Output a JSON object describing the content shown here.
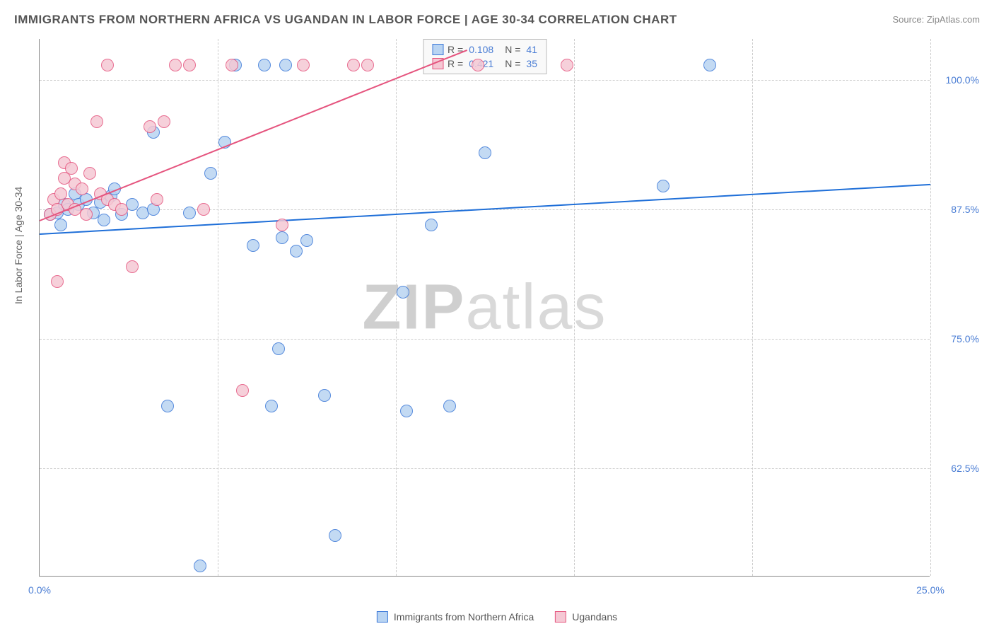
{
  "title": "IMMIGRANTS FROM NORTHERN AFRICA VS UGANDAN IN LABOR FORCE | AGE 30-34 CORRELATION CHART",
  "source": "Source: ZipAtlas.com",
  "y_axis_label": "In Labor Force | Age 30-34",
  "watermark_a": "ZIP",
  "watermark_b": "atlas",
  "chart": {
    "type": "scatter",
    "xlim": [
      0,
      25
    ],
    "ylim": [
      52,
      104
    ],
    "y_ticks": [
      62.5,
      75.0,
      87.5,
      100.0
    ],
    "y_tick_labels": [
      "62.5%",
      "75.0%",
      "87.5%",
      "100.0%"
    ],
    "x_ticks": [
      0,
      5,
      10,
      15,
      20,
      25
    ],
    "x_tick_labels": [
      "0.0%",
      "",
      "",
      "",
      "",
      "25.0%"
    ],
    "background_color": "#ffffff",
    "grid_color": "#cccccc",
    "series": [
      {
        "name": "Immigrants from Northern Africa",
        "color_fill": "#b9d4f2",
        "color_stroke": "#3b78d8",
        "line_color": "#1f6fd8",
        "R": "0.108",
        "N": "41",
        "trend": {
          "x1": 0,
          "y1": 85.2,
          "x2": 25,
          "y2": 90.0
        },
        "points": [
          {
            "x": 0.3,
            "y": 87.0
          },
          {
            "x": 0.5,
            "y": 87.2
          },
          {
            "x": 0.6,
            "y": 86.0
          },
          {
            "x": 0.7,
            "y": 88.0
          },
          {
            "x": 0.8,
            "y": 87.5
          },
          {
            "x": 1.0,
            "y": 89.0
          },
          {
            "x": 1.1,
            "y": 88.0
          },
          {
            "x": 1.3,
            "y": 88.5
          },
          {
            "x": 1.5,
            "y": 87.2
          },
          {
            "x": 1.7,
            "y": 88.2
          },
          {
            "x": 1.8,
            "y": 86.5
          },
          {
            "x": 2.0,
            "y": 88.8
          },
          {
            "x": 2.1,
            "y": 89.5
          },
          {
            "x": 2.3,
            "y": 87.0
          },
          {
            "x": 2.6,
            "y": 88.0
          },
          {
            "x": 2.9,
            "y": 87.2
          },
          {
            "x": 3.2,
            "y": 87.5
          },
          {
            "x": 3.2,
            "y": 95.0
          },
          {
            "x": 3.6,
            "y": 68.5
          },
          {
            "x": 4.2,
            "y": 87.2
          },
          {
            "x": 4.5,
            "y": 53.0
          },
          {
            "x": 4.8,
            "y": 91.0
          },
          {
            "x": 5.2,
            "y": 94.0
          },
          {
            "x": 5.5,
            "y": 101.5
          },
          {
            "x": 6.0,
            "y": 84.0
          },
          {
            "x": 6.3,
            "y": 101.5
          },
          {
            "x": 6.5,
            "y": 68.5
          },
          {
            "x": 6.7,
            "y": 74.0
          },
          {
            "x": 6.8,
            "y": 84.8
          },
          {
            "x": 6.9,
            "y": 101.5
          },
          {
            "x": 7.2,
            "y": 83.5
          },
          {
            "x": 7.5,
            "y": 84.5
          },
          {
            "x": 8.0,
            "y": 69.5
          },
          {
            "x": 8.3,
            "y": 56.0
          },
          {
            "x": 10.2,
            "y": 79.5
          },
          {
            "x": 10.3,
            "y": 68.0
          },
          {
            "x": 11.0,
            "y": 86.0
          },
          {
            "x": 11.5,
            "y": 68.5
          },
          {
            "x": 12.5,
            "y": 93.0
          },
          {
            "x": 17.5,
            "y": 89.8
          },
          {
            "x": 18.8,
            "y": 101.5
          }
        ]
      },
      {
        "name": "Ugandans",
        "color_fill": "#f5c8d4",
        "color_stroke": "#e5547e",
        "line_color": "#e5547e",
        "R": "0.421",
        "N": "35",
        "trend": {
          "x1": 0,
          "y1": 86.5,
          "x2": 12,
          "y2": 103.0
        },
        "points": [
          {
            "x": 0.3,
            "y": 87.0
          },
          {
            "x": 0.4,
            "y": 88.5
          },
          {
            "x": 0.5,
            "y": 87.5
          },
          {
            "x": 0.5,
            "y": 80.5
          },
          {
            "x": 0.6,
            "y": 89.0
          },
          {
            "x": 0.7,
            "y": 90.5
          },
          {
            "x": 0.7,
            "y": 92.0
          },
          {
            "x": 0.8,
            "y": 88.0
          },
          {
            "x": 0.9,
            "y": 91.5
          },
          {
            "x": 1.0,
            "y": 87.5
          },
          {
            "x": 1.0,
            "y": 90.0
          },
          {
            "x": 1.2,
            "y": 89.5
          },
          {
            "x": 1.3,
            "y": 87.0
          },
          {
            "x": 1.4,
            "y": 91.0
          },
          {
            "x": 1.6,
            "y": 96.0
          },
          {
            "x": 1.7,
            "y": 89.0
          },
          {
            "x": 1.9,
            "y": 88.5
          },
          {
            "x": 1.9,
            "y": 101.5
          },
          {
            "x": 2.1,
            "y": 88.0
          },
          {
            "x": 2.3,
            "y": 87.5
          },
          {
            "x": 2.6,
            "y": 82.0
          },
          {
            "x": 3.1,
            "y": 95.5
          },
          {
            "x": 3.3,
            "y": 88.5
          },
          {
            "x": 3.5,
            "y": 96.0
          },
          {
            "x": 3.8,
            "y": 101.5
          },
          {
            "x": 4.2,
            "y": 101.5
          },
          {
            "x": 4.6,
            "y": 87.5
          },
          {
            "x": 5.4,
            "y": 101.5
          },
          {
            "x": 5.7,
            "y": 70.0
          },
          {
            "x": 6.8,
            "y": 86.0
          },
          {
            "x": 7.4,
            "y": 101.5
          },
          {
            "x": 8.8,
            "y": 101.5
          },
          {
            "x": 9.2,
            "y": 101.5
          },
          {
            "x": 12.3,
            "y": 101.5
          },
          {
            "x": 14.8,
            "y": 101.5
          }
        ]
      }
    ]
  },
  "legend_prefix_r": "R =",
  "legend_prefix_n": "N ="
}
